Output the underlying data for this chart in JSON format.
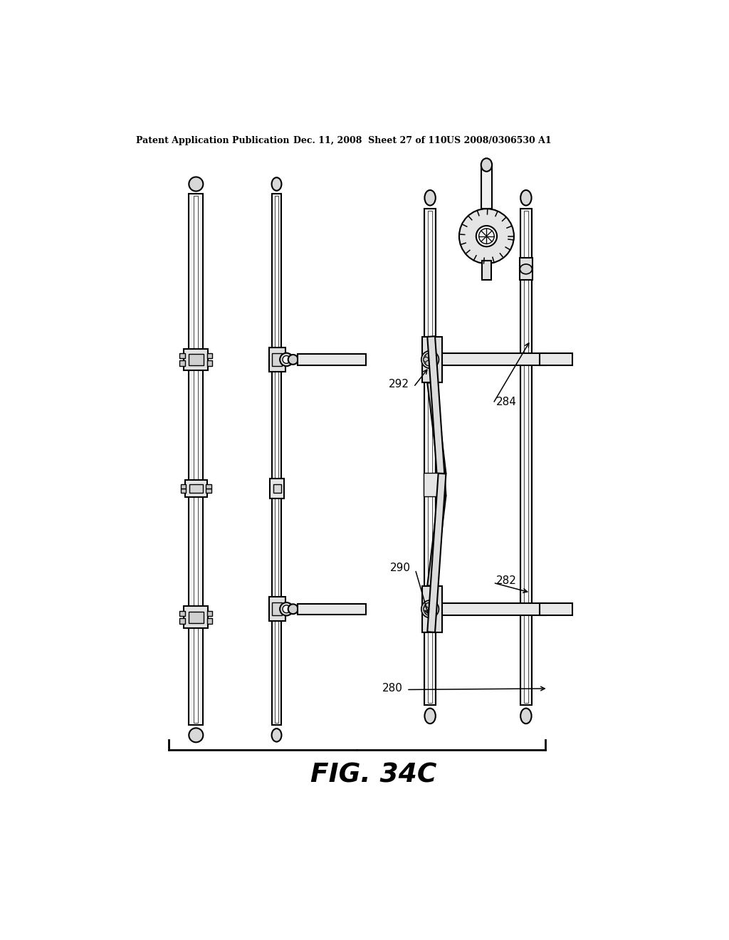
{
  "title": "FIG. 34C",
  "header_left": "Patent Application Publication",
  "header_mid": "Dec. 11, 2008  Sheet 27 of 110",
  "header_right": "US 2008/0306530 A1",
  "bg_color": "#ffffff",
  "line_color": "#000000",
  "label_280": "280",
  "label_282": "282",
  "label_284": "284",
  "label_290": "290",
  "label_292": "292"
}
